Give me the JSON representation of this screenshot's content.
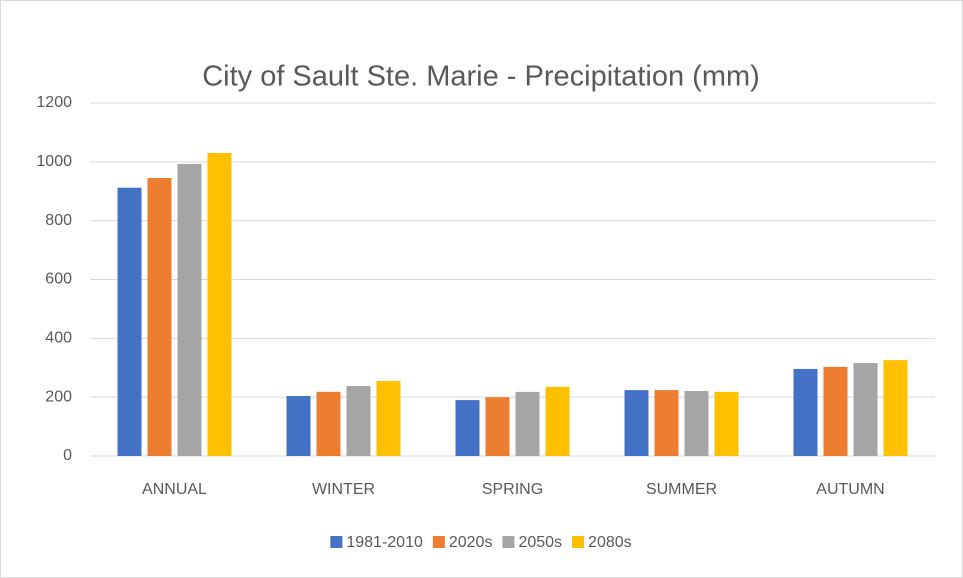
{
  "chart_data": {
    "type": "bar",
    "title": "City of Sault Ste. Marie -  Precipitation (mm)",
    "categories": [
      "ANNUAL",
      "WINTER",
      "SPRING",
      "SUMMER",
      "AUTUMN"
    ],
    "series": [
      {
        "name": "1981-2010",
        "color": "#4472c4",
        "values": [
          912,
          204,
          190,
          224,
          296
        ]
      },
      {
        "name": "2020s",
        "color": "#ed7d31",
        "values": [
          945,
          218,
          200,
          224,
          303
        ]
      },
      {
        "name": "2050s",
        "color": "#a5a5a5",
        "values": [
          993,
          238,
          218,
          221,
          316
        ]
      },
      {
        "name": "2080s",
        "color": "#ffc000",
        "values": [
          1030,
          255,
          235,
          218,
          326
        ]
      }
    ],
    "ylim": [
      0,
      1200
    ],
    "yticks": [
      0,
      200,
      400,
      600,
      800,
      1000,
      1200
    ],
    "grid": true,
    "legend": "bottom"
  }
}
